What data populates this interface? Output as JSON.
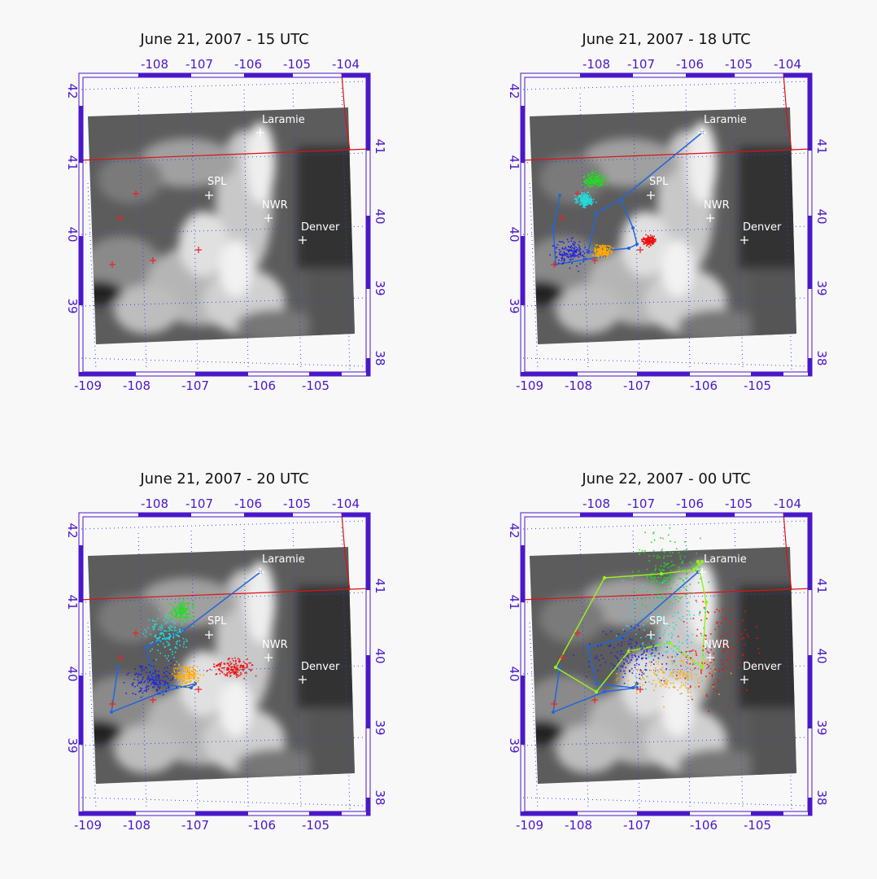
{
  "panels": [
    {
      "title": "June 21, 2007 - 15 UTC"
    },
    {
      "title": "June 21, 2007 - 18 UTC"
    },
    {
      "title": "June 21, 2007 - 20 UTC"
    },
    {
      "title": "June 22, 2007 - 00 UTC"
    }
  ],
  "axis_labels": {
    "top": [
      "-108",
      "-107",
      "-106",
      "-105",
      "-104"
    ],
    "bottom": [
      "-109",
      "-108",
      "-107",
      "-106",
      "-105"
    ],
    "left": [
      "42",
      "41",
      "40",
      "39"
    ],
    "right": [
      "41",
      "40",
      "39",
      "38"
    ]
  },
  "places": [
    "Laramie",
    "SPL",
    "NWR",
    "Denver"
  ]
}
